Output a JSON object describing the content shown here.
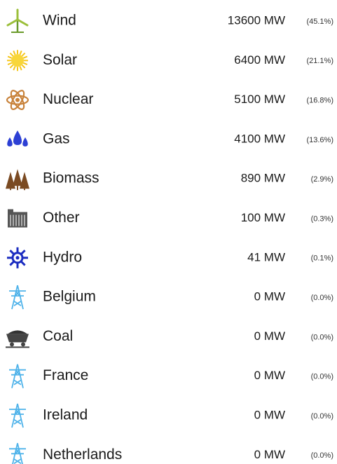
{
  "rows": [
    {
      "label": "Wind",
      "power": "13600 MW",
      "share": "(45.1%)"
    },
    {
      "label": "Solar",
      "power": "6400 MW",
      "share": "(21.1%)"
    },
    {
      "label": "Nuclear",
      "power": "5100 MW",
      "share": "(16.8%)"
    },
    {
      "label": "Gas",
      "power": "4100 MW",
      "share": "(13.6%)"
    },
    {
      "label": "Biomass",
      "power": "890 MW",
      "share": "(2.9%)"
    },
    {
      "label": "Other",
      "power": "100 MW",
      "share": "(0.3%)"
    },
    {
      "label": "Hydro",
      "power": "41 MW",
      "share": "(0.1%)"
    },
    {
      "label": "Belgium",
      "power": "0 MW",
      "share": "(0.0%)"
    },
    {
      "label": "Coal",
      "power": "0 MW",
      "share": "(0.0%)"
    },
    {
      "label": "France",
      "power": "0 MW",
      "share": "(0.0%)"
    },
    {
      "label": "Ireland",
      "power": "0 MW",
      "share": "(0.0%)"
    },
    {
      "label": "Netherlands",
      "power": "0 MW",
      "share": "(0.0%)"
    }
  ]
}
